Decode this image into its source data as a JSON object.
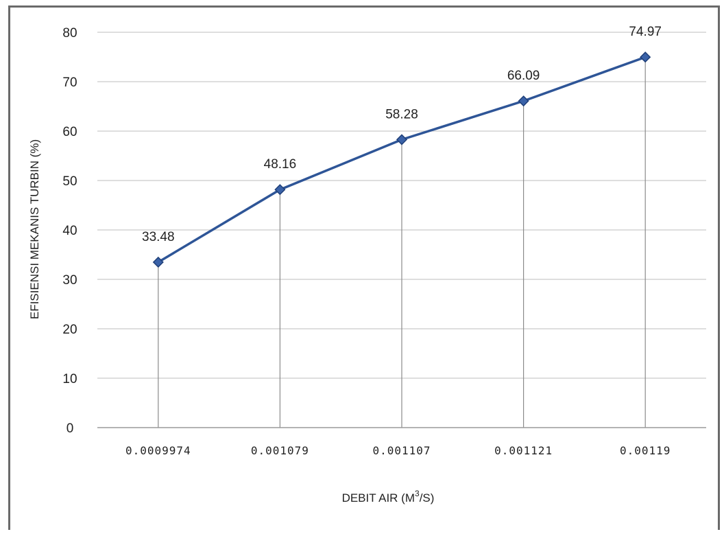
{
  "chart_data": {
    "type": "line",
    "title": "",
    "xlabel": "DEBIT AIR (M",
    "xlabel_sup": "3",
    "xlabel_suffix": "/S)",
    "ylabel": "EFISIENSI MEKANIS TURBIN (%)",
    "categories": [
      "0.0009974",
      "0.001079",
      "0.001107",
      "0.001121",
      "0.00119"
    ],
    "series": [
      {
        "values": [
          33.48,
          48.16,
          58.28,
          66.09,
          74.97
        ],
        "color": "#2e5597"
      }
    ],
    "data_labels": [
      "33.48",
      "48.16",
      "58.28",
      "66.09",
      "74.97"
    ],
    "ylim": [
      0,
      80
    ],
    "yticks": [
      "0",
      "10",
      "20",
      "30",
      "40",
      "50",
      "60",
      "70",
      "80"
    ],
    "grid": true,
    "drop_lines": true,
    "marker": "diamond",
    "colors": {
      "gridline": "#d4d4d4",
      "drop_line": "#8a8a8a",
      "axis": "#9a9a9a",
      "frame": "#6a6a6a"
    }
  }
}
